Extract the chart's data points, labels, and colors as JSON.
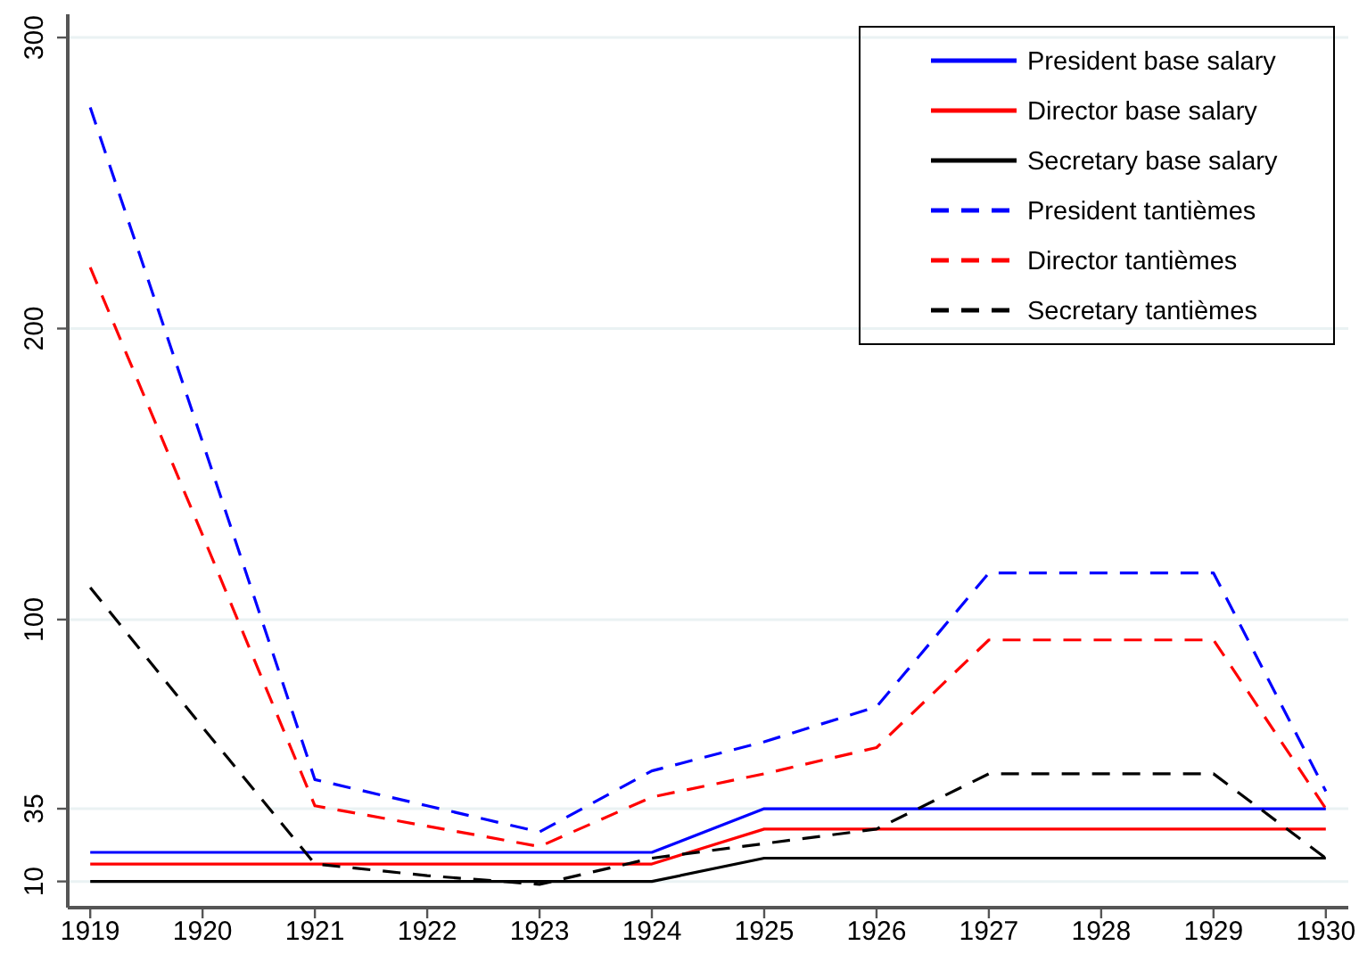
{
  "chart_data": {
    "type": "line",
    "x": [
      1919,
      1920,
      1921,
      1922,
      1923,
      1924,
      1925,
      1926,
      1927,
      1928,
      1929,
      1930
    ],
    "series": [
      {
        "name": "President base salary",
        "color": "#0000ff",
        "line_style": "solid",
        "values": [
          20,
          20,
          20,
          20,
          20,
          20,
          35,
          35,
          35,
          35,
          35,
          35
        ]
      },
      {
        "name": "Director base salary",
        "color": "#ff0000",
        "line_style": "solid",
        "values": [
          16,
          16,
          16,
          16,
          16,
          16,
          28,
          28,
          28,
          28,
          28,
          28
        ]
      },
      {
        "name": "Secretary base salary",
        "color": "#000000",
        "line_style": "solid",
        "values": [
          10,
          10,
          10,
          10,
          10,
          10,
          18,
          18,
          18,
          18,
          18,
          18
        ]
      },
      {
        "name": "President tantièmes",
        "color": "#0000ff",
        "line_style": "dashed",
        "values": [
          276,
          161,
          45,
          36,
          27,
          48,
          58,
          70,
          116,
          116,
          116,
          41
        ]
      },
      {
        "name": "Director tantièmes",
        "color": "#ff0000",
        "line_style": "dashed",
        "values": [
          221,
          129,
          36,
          29,
          22,
          39,
          47,
          56,
          93,
          93,
          93,
          35
        ]
      },
      {
        "name": "Secretary tantièmes",
        "color": "#000000",
        "line_style": "dashed",
        "values": [
          111,
          63,
          16,
          12,
          9,
          18,
          23,
          28,
          47,
          47,
          47,
          18
        ]
      }
    ],
    "xlim": [
      1918.8,
      1930.2
    ],
    "xticks": [
      1919,
      1920,
      1921,
      1922,
      1923,
      1924,
      1925,
      1926,
      1927,
      1928,
      1929,
      1930
    ],
    "ylim": [
      1,
      308
    ],
    "yticks": [
      10,
      35,
      100,
      200,
      300
    ],
    "grid": "y",
    "legend": "top right"
  }
}
